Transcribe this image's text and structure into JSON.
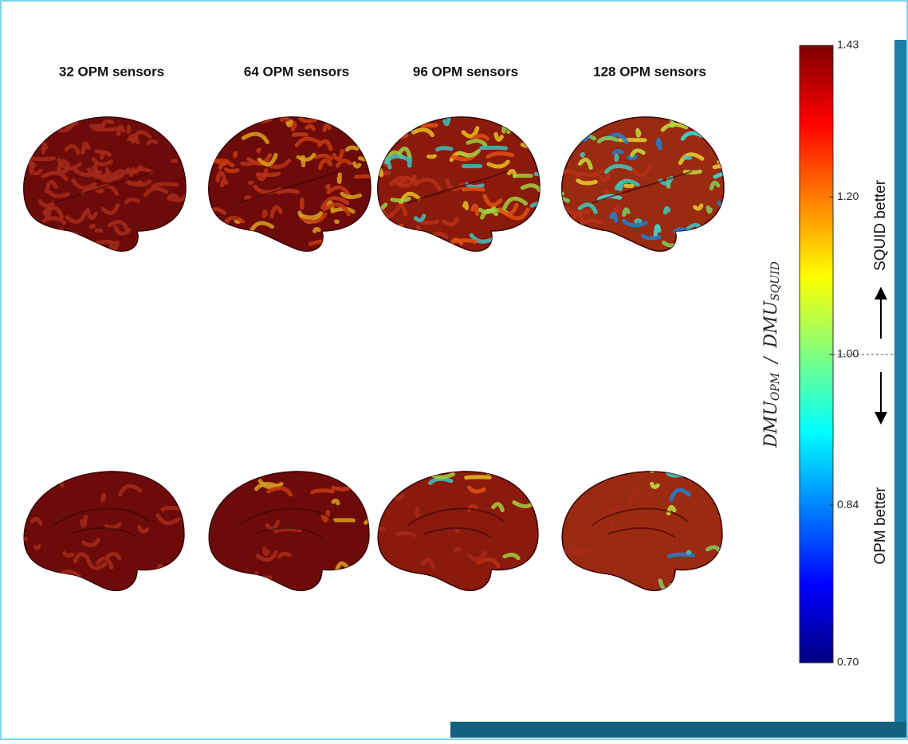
{
  "columns": [
    "32 OPM sensors",
    "64 OPM sensors",
    "96 OPM sensors",
    "128 OPM sensors"
  ],
  "colorbar": {
    "ylim": [
      0.7,
      1.43
    ],
    "log_scale": true,
    "yticks": [
      {
        "value": 0.7,
        "label": "0.70"
      },
      0.84,
      {
        "value": 1.0,
        "label": "1.00"
      },
      {
        "value": 1.2,
        "label": "1.20"
      },
      1.43
    ],
    "colormap": [
      "#00007f",
      "#0000ff",
      "#0080ff",
      "#00ffff",
      "#80ff80",
      "#ffff00",
      "#ff8000",
      "#ff0000",
      "#7f0000"
    ],
    "label": {
      "main1": "DMU",
      "sub1": "OPM",
      "sep": "/",
      "main2": "DMU",
      "sub2": "SQUID"
    },
    "upper_note": "SQUID better",
    "lower_note": "OPM better"
  }
}
